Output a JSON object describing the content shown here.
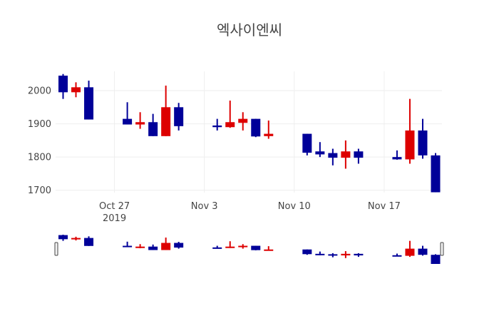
{
  "chart_data": {
    "type": "candlestick",
    "title": "엑사이엔씨",
    "xlabel": "",
    "ylabel": "",
    "ylim": [
      1693,
      2058
    ],
    "xlim": [
      "2019-10-22T10:00",
      "2019-11-21T12:00"
    ],
    "grid": true,
    "rangeslider": true,
    "increasing_color": "#dd0000",
    "decreasing_color": "#000099",
    "y_ticks": [
      1700,
      1800,
      1900,
      2000
    ],
    "x_ticks": [
      {
        "date": "2019-10-27",
        "label": "Oct 27",
        "sublabel": "2019"
      },
      {
        "date": "2019-11-03",
        "label": "Nov 3"
      },
      {
        "date": "2019-11-10",
        "label": "Nov 10"
      },
      {
        "date": "2019-11-17",
        "label": "Nov 17"
      }
    ],
    "candles": [
      {
        "date": "2019-10-23",
        "open": 2045,
        "high": 2050,
        "low": 1975,
        "close": 1995
      },
      {
        "date": "2019-10-24",
        "open": 1995,
        "high": 2025,
        "low": 1980,
        "close": 2010
      },
      {
        "date": "2019-10-25",
        "open": 2010,
        "high": 2030,
        "low": 1913,
        "close": 1913
      },
      {
        "date": "2019-10-28",
        "open": 1915,
        "high": 1965,
        "low": 1898,
        "close": 1898
      },
      {
        "date": "2019-10-29",
        "open": 1898,
        "high": 1935,
        "low": 1885,
        "close": 1905
      },
      {
        "date": "2019-10-30",
        "open": 1905,
        "high": 1930,
        "low": 1863,
        "close": 1863
      },
      {
        "date": "2019-10-31",
        "open": 1863,
        "high": 2015,
        "low": 1863,
        "close": 1950
      },
      {
        "date": "2019-11-01",
        "open": 1950,
        "high": 1963,
        "low": 1880,
        "close": 1893
      },
      {
        "date": "2019-11-04",
        "open": 1895,
        "high": 1915,
        "low": 1880,
        "close": 1890
      },
      {
        "date": "2019-11-05",
        "open": 1890,
        "high": 1970,
        "low": 1888,
        "close": 1905
      },
      {
        "date": "2019-11-06",
        "open": 1903,
        "high": 1935,
        "low": 1880,
        "close": 1915
      },
      {
        "date": "2019-11-07",
        "open": 1915,
        "high": 1915,
        "low": 1860,
        "close": 1862
      },
      {
        "date": "2019-11-08",
        "open": 1863,
        "high": 1910,
        "low": 1855,
        "close": 1870
      },
      {
        "date": "2019-11-11",
        "open": 1870,
        "high": 1870,
        "low": 1805,
        "close": 1813
      },
      {
        "date": "2019-11-12",
        "open": 1817,
        "high": 1845,
        "low": 1800,
        "close": 1808
      },
      {
        "date": "2019-11-13",
        "open": 1812,
        "high": 1825,
        "low": 1775,
        "close": 1798
      },
      {
        "date": "2019-11-14",
        "open": 1798,
        "high": 1850,
        "low": 1765,
        "close": 1817
      },
      {
        "date": "2019-11-15",
        "open": 1817,
        "high": 1825,
        "low": 1780,
        "close": 1798
      },
      {
        "date": "2019-11-18",
        "open": 1800,
        "high": 1820,
        "low": 1792,
        "close": 1793
      },
      {
        "date": "2019-11-19",
        "open": 1793,
        "high": 1975,
        "low": 1780,
        "close": 1880
      },
      {
        "date": "2019-11-20",
        "open": 1880,
        "high": 1915,
        "low": 1795,
        "close": 1805
      },
      {
        "date": "2019-11-21",
        "open": 1805,
        "high": 1812,
        "low": 1694,
        "close": 1694
      }
    ]
  }
}
